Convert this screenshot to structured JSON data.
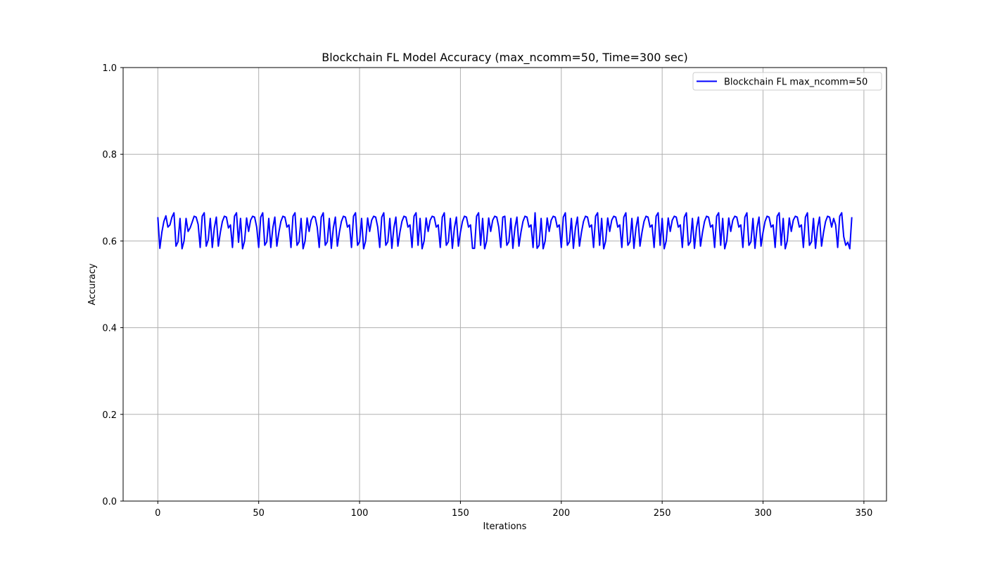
{
  "chart_data": {
    "type": "line",
    "title": "Blockchain FL Model Accuracy (max_ncomm=50, Time=300 sec)",
    "xlabel": "Iterations",
    "ylabel": "Accuracy",
    "xlim": [
      -17.2,
      361.2
    ],
    "ylim": [
      0.0,
      1.0
    ],
    "xticks": [
      0,
      50,
      100,
      150,
      200,
      250,
      300,
      350
    ],
    "xtick_labels": [
      "0",
      "50",
      "100",
      "150",
      "200",
      "250",
      "300",
      "350"
    ],
    "yticks": [
      0.0,
      0.2,
      0.4,
      0.6,
      0.8,
      1.0
    ],
    "ytick_labels": [
      "0.0",
      "0.2",
      "0.4",
      "0.6",
      "0.8",
      "1.0"
    ],
    "grid": true,
    "legend_position": "top-right",
    "series": [
      {
        "name": "Blockchain FL max_ncomm=50",
        "color": "#0000ff",
        "x_start": 0,
        "x_step": 1,
        "values": [
          0.655,
          0.583,
          0.62,
          0.645,
          0.658,
          0.632,
          0.637,
          0.655,
          0.665,
          0.588,
          0.598,
          0.652,
          0.582,
          0.6,
          0.652,
          0.622,
          0.63,
          0.643,
          0.657,
          0.655,
          0.638,
          0.585,
          0.657,
          0.665,
          0.588,
          0.603,
          0.652,
          0.585,
          0.63,
          0.655,
          0.588,
          0.62,
          0.645,
          0.657,
          0.655,
          0.63,
          0.637,
          0.585,
          0.657,
          0.665,
          0.597,
          0.652,
          0.582,
          0.6,
          0.653,
          0.622,
          0.648,
          0.657,
          0.655,
          0.632,
          0.585,
          0.655,
          0.665,
          0.59,
          0.598,
          0.652,
          0.585,
          0.63,
          0.655,
          0.588,
          0.62,
          0.645,
          0.657,
          0.655,
          0.632,
          0.637,
          0.585,
          0.657,
          0.665,
          0.59,
          0.598,
          0.652,
          0.582,
          0.6,
          0.653,
          0.622,
          0.648,
          0.657,
          0.655,
          0.632,
          0.585,
          0.655,
          0.665,
          0.59,
          0.598,
          0.652,
          0.583,
          0.63,
          0.655,
          0.588,
          0.62,
          0.645,
          0.657,
          0.655,
          0.632,
          0.637,
          0.585,
          0.657,
          0.665,
          0.59,
          0.598,
          0.652,
          0.582,
          0.6,
          0.653,
          0.622,
          0.648,
          0.657,
          0.655,
          0.632,
          0.585,
          0.655,
          0.665,
          0.59,
          0.598,
          0.652,
          0.583,
          0.63,
          0.655,
          0.588,
          0.62,
          0.645,
          0.657,
          0.655,
          0.632,
          0.637,
          0.585,
          0.657,
          0.665,
          0.59,
          0.652,
          0.582,
          0.6,
          0.653,
          0.622,
          0.648,
          0.657,
          0.655,
          0.632,
          0.637,
          0.585,
          0.655,
          0.665,
          0.59,
          0.598,
          0.652,
          0.583,
          0.63,
          0.655,
          0.588,
          0.62,
          0.645,
          0.657,
          0.655,
          0.632,
          0.637,
          0.583,
          0.583,
          0.657,
          0.665,
          0.59,
          0.652,
          0.582,
          0.6,
          0.653,
          0.622,
          0.648,
          0.657,
          0.655,
          0.632,
          0.585,
          0.655,
          0.657,
          0.59,
          0.598,
          0.652,
          0.583,
          0.63,
          0.655,
          0.588,
          0.62,
          0.645,
          0.657,
          0.655,
          0.632,
          0.637,
          0.585,
          0.665,
          0.583,
          0.59,
          0.652,
          0.582,
          0.6,
          0.653,
          0.622,
          0.648,
          0.657,
          0.655,
          0.632,
          0.637,
          0.585,
          0.655,
          0.665,
          0.59,
          0.598,
          0.652,
          0.583,
          0.63,
          0.655,
          0.588,
          0.62,
          0.645,
          0.657,
          0.655,
          0.632,
          0.637,
          0.585,
          0.657,
          0.665,
          0.59,
          0.652,
          0.582,
          0.6,
          0.653,
          0.622,
          0.648,
          0.657,
          0.655,
          0.632,
          0.637,
          0.585,
          0.655,
          0.665,
          0.59,
          0.598,
          0.652,
          0.583,
          0.63,
          0.655,
          0.588,
          0.62,
          0.645,
          0.657,
          0.655,
          0.632,
          0.637,
          0.585,
          0.657,
          0.665,
          0.59,
          0.652,
          0.582,
          0.6,
          0.653,
          0.622,
          0.648,
          0.657,
          0.655,
          0.632,
          0.637,
          0.585,
          0.655,
          0.665,
          0.59,
          0.598,
          0.652,
          0.583,
          0.63,
          0.655,
          0.588,
          0.62,
          0.645,
          0.657,
          0.655,
          0.632,
          0.637,
          0.585,
          0.657,
          0.665,
          0.59,
          0.652,
          0.582,
          0.6,
          0.653,
          0.622,
          0.648,
          0.657,
          0.655,
          0.632,
          0.637,
          0.585,
          0.655,
          0.665,
          0.59,
          0.598,
          0.652,
          0.583,
          0.63,
          0.655,
          0.588,
          0.62,
          0.645,
          0.657,
          0.655,
          0.632,
          0.637,
          0.585,
          0.657,
          0.665,
          0.59,
          0.652,
          0.582,
          0.6,
          0.653,
          0.622,
          0.648,
          0.657,
          0.655,
          0.632,
          0.637,
          0.585,
          0.655,
          0.665,
          0.59,
          0.598,
          0.652,
          0.583,
          0.63,
          0.655,
          0.588,
          0.62,
          0.645,
          0.657,
          0.655,
          0.632,
          0.652,
          0.637,
          0.585,
          0.657,
          0.665,
          0.61,
          0.59,
          0.597,
          0.582,
          0.655
        ]
      }
    ]
  }
}
